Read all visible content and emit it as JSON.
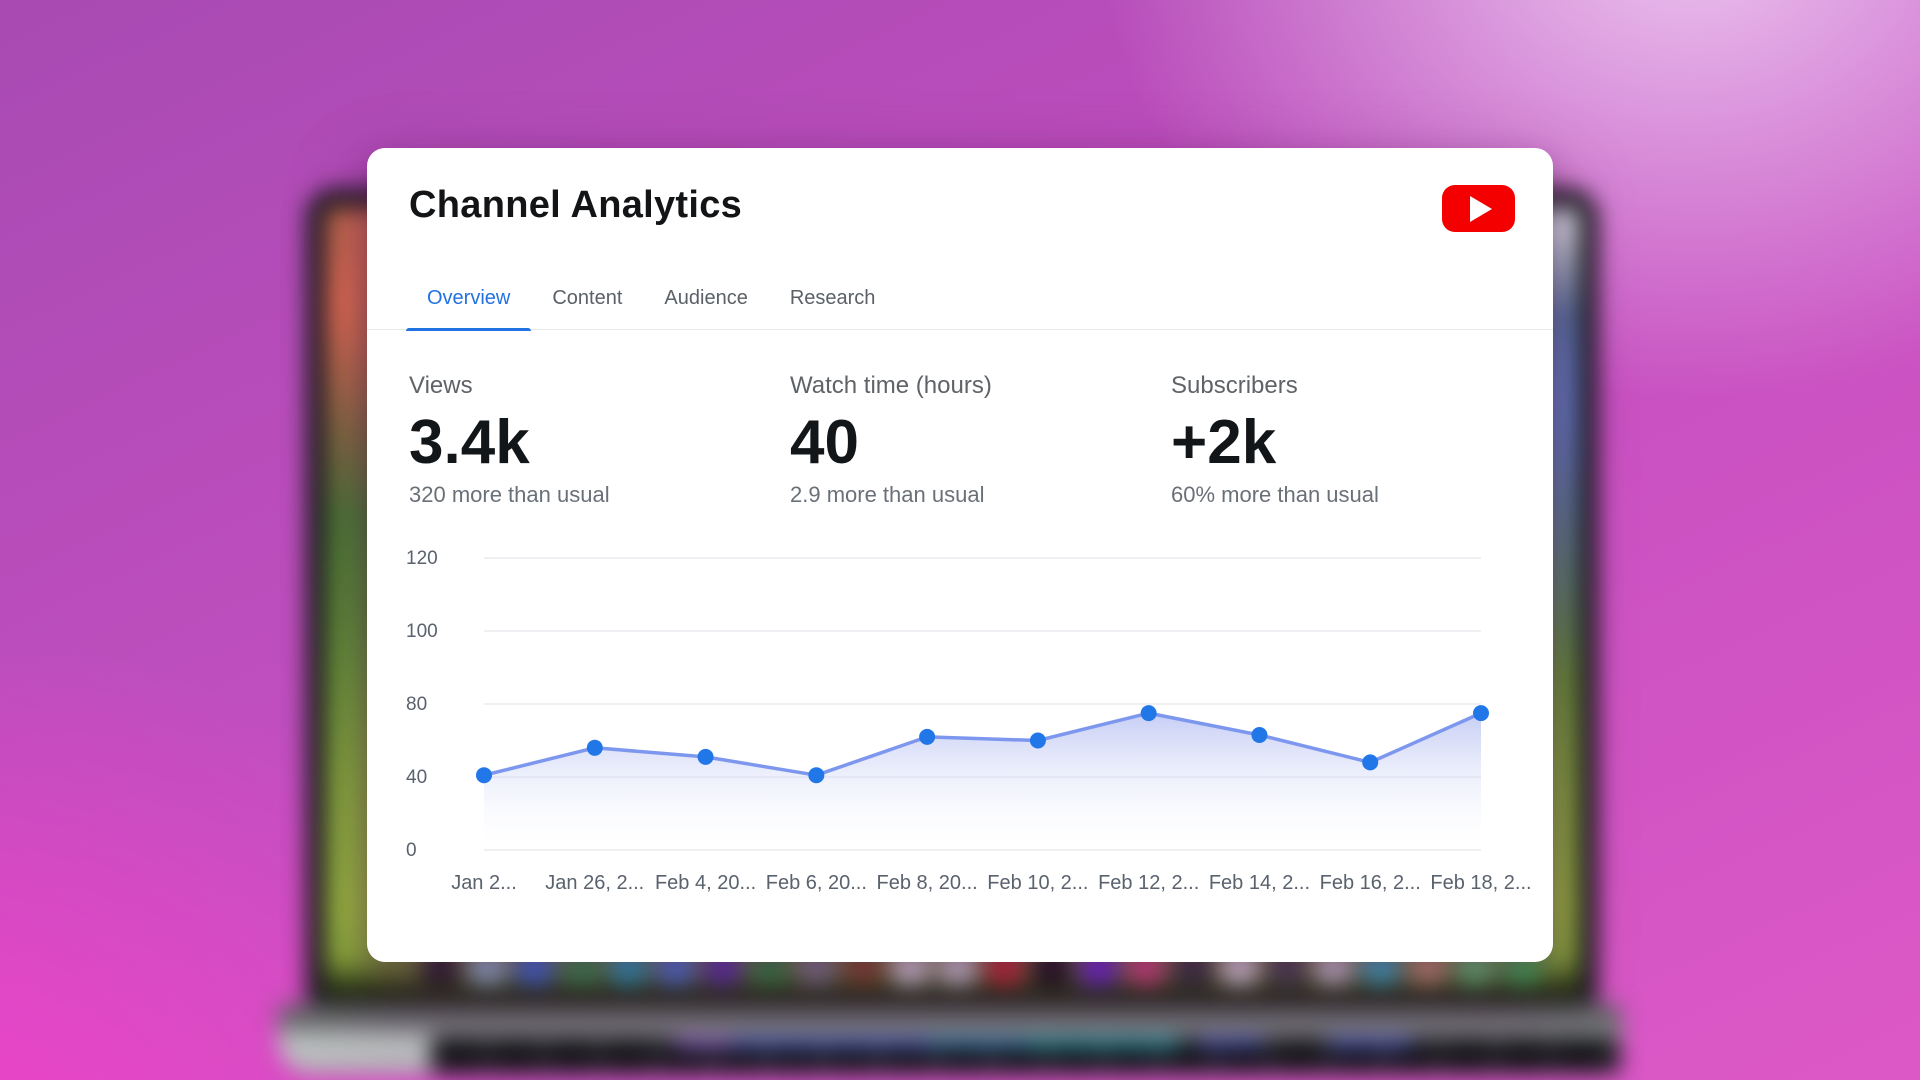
{
  "header": {
    "title": "Channel Analytics",
    "logo_color": "#f50000"
  },
  "tabs": [
    {
      "label": "Overview",
      "active": true
    },
    {
      "label": "Content",
      "active": false
    },
    {
      "label": "Audience",
      "active": false
    },
    {
      "label": "Research",
      "active": false
    }
  ],
  "stats": [
    {
      "label": "Views",
      "value": "3.4k",
      "note": "320 more than usual"
    },
    {
      "label": "Watch time (hours)",
      "value": "40",
      "note": "2.9 more than usual"
    },
    {
      "label": "Subscribers",
      "value": "+2k",
      "note": "60% more than usual"
    }
  ],
  "chart_data": {
    "type": "area",
    "title": "",
    "xlabel": "",
    "ylabel": "",
    "categories": [
      "Jan 2...",
      "Jan 26, 2...",
      "Feb 4, 20...",
      "Feb 6, 20...",
      "Feb 8, 20...",
      "Feb 10, 2...",
      "Feb 12, 2...",
      "Feb 14, 2...",
      "Feb 16, 2...",
      "Feb 18, 2..."
    ],
    "values": [
      41,
      56,
      51,
      41,
      62,
      60,
      75,
      63,
      48,
      75
    ],
    "y_ticks": [
      120,
      100,
      80,
      40,
      0
    ],
    "ylim": [
      0,
      120
    ],
    "grid": true,
    "legend": false,
    "line_color": "#7e97ee",
    "dot_color": "#2277e8",
    "fill_color": "#96a5ec",
    "grid_color": "#ececf0",
    "tick_color": "#5a626e"
  },
  "background": {
    "dock_colors": [
      "#222426",
      "#9fd3e6",
      "#3b82f6",
      "#34a853",
      "#22b8cf",
      "#4e8df7",
      "#5f3dc4",
      "#2f9e44",
      "#868e96",
      "#8d5524",
      "#f1f3f5",
      "#e9ecef",
      "#e03131",
      "#101113",
      "#7b2ff7",
      "#f0558a",
      "#343a40",
      "#f8f9fa",
      "#495057",
      "#dee2e6",
      "#3bc9db",
      "#d2a679",
      "#69db7c",
      "#40c057"
    ]
  }
}
